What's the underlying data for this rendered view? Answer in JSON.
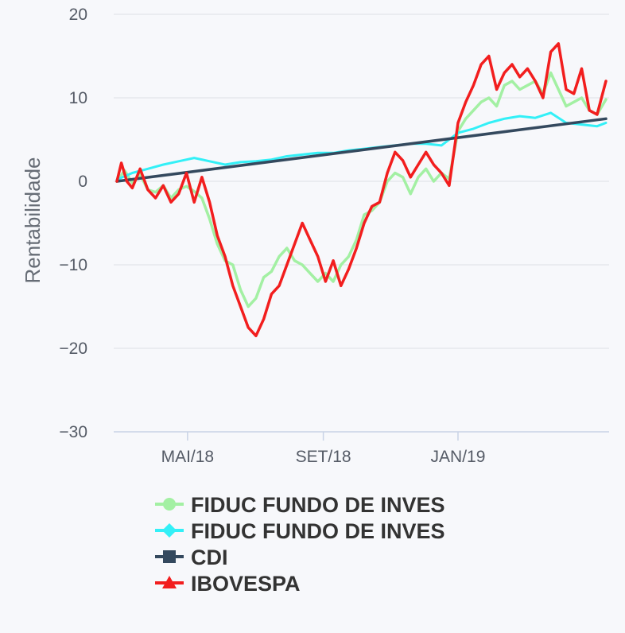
{
  "chart_data": {
    "type": "line",
    "ylabel": "Rentabilidade",
    "ylim": [
      -30,
      20
    ],
    "y_ticks": [
      "20",
      "10",
      "0",
      "−10",
      "−20",
      "−30"
    ],
    "y_tick_values": [
      20,
      10,
      0,
      -10,
      -20,
      -30
    ],
    "x_ticks": [
      "MAI/18",
      "SET/18",
      "JAN/19"
    ],
    "x_range": [
      "2018-02-26",
      "2019-05-15"
    ],
    "x_tick_dates": [
      "2018-05-01",
      "2018-09-01",
      "2019-01-01"
    ],
    "grid": true,
    "legend_position": "bottom",
    "series": [
      {
        "name": "FIDUC FUNDO DE INVES",
        "color": "#a3f0a3",
        "marker": "circle",
        "points": [
          [
            "2018-02-26",
            0.0
          ],
          [
            "2018-03-05",
            1.3
          ],
          [
            "2018-03-12",
            -0.2
          ],
          [
            "2018-03-19",
            0.8
          ],
          [
            "2018-03-26",
            -1.0
          ],
          [
            "2018-04-02",
            -1.3
          ],
          [
            "2018-04-09",
            -0.5
          ],
          [
            "2018-04-16",
            -2.0
          ],
          [
            "2018-04-23",
            -1.0
          ],
          [
            "2018-04-30",
            -0.6
          ],
          [
            "2018-05-07",
            -1.2
          ],
          [
            "2018-05-14",
            -2.0
          ],
          [
            "2018-05-21",
            -4.5
          ],
          [
            "2018-05-28",
            -7.5
          ],
          [
            "2018-06-04",
            -9.5
          ],
          [
            "2018-06-11",
            -10.0
          ],
          [
            "2018-06-18",
            -13.0
          ],
          [
            "2018-06-25",
            -15.0
          ],
          [
            "2018-07-02",
            -14.0
          ],
          [
            "2018-07-09",
            -11.5
          ],
          [
            "2018-07-16",
            -10.8
          ],
          [
            "2018-07-23",
            -9.0
          ],
          [
            "2018-07-30",
            -8.0
          ],
          [
            "2018-08-06",
            -9.5
          ],
          [
            "2018-08-13",
            -10.0
          ],
          [
            "2018-08-20",
            -11.0
          ],
          [
            "2018-08-27",
            -12.0
          ],
          [
            "2018-09-03",
            -11.0
          ],
          [
            "2018-09-10",
            -12.0
          ],
          [
            "2018-09-17",
            -10.0
          ],
          [
            "2018-09-24",
            -9.0
          ],
          [
            "2018-10-01",
            -7.0
          ],
          [
            "2018-10-08",
            -4.0
          ],
          [
            "2018-10-15",
            -3.5
          ],
          [
            "2018-10-22",
            -2.5
          ],
          [
            "2018-10-29",
            0.0
          ],
          [
            "2018-11-05",
            1.0
          ],
          [
            "2018-11-12",
            0.5
          ],
          [
            "2018-11-19",
            -1.5
          ],
          [
            "2018-11-26",
            0.5
          ],
          [
            "2018-12-03",
            1.5
          ],
          [
            "2018-12-10",
            0.0
          ],
          [
            "2018-12-17",
            1.0
          ],
          [
            "2018-12-24",
            0.3
          ],
          [
            "2019-01-01",
            6.0
          ],
          [
            "2019-01-08",
            7.5
          ],
          [
            "2019-01-15",
            8.5
          ],
          [
            "2019-01-22",
            9.5
          ],
          [
            "2019-01-29",
            10.0
          ],
          [
            "2019-02-05",
            9.0
          ],
          [
            "2019-02-12",
            11.5
          ],
          [
            "2019-02-19",
            12.0
          ],
          [
            "2019-02-26",
            11.0
          ],
          [
            "2019-03-05",
            11.5
          ],
          [
            "2019-03-12",
            12.0
          ],
          [
            "2019-03-19",
            10.5
          ],
          [
            "2019-03-26",
            13.0
          ],
          [
            "2019-04-02",
            11.0
          ],
          [
            "2019-04-09",
            9.0
          ],
          [
            "2019-04-16",
            9.5
          ],
          [
            "2019-04-23",
            10.0
          ],
          [
            "2019-04-30",
            8.5
          ],
          [
            "2019-05-07",
            8.0
          ],
          [
            "2019-05-15",
            9.8
          ]
        ]
      },
      {
        "name": "FIDUC FUNDO DE INVES",
        "color": "#33f0f7",
        "marker": "diamond",
        "points": [
          [
            "2018-02-26",
            0.2
          ],
          [
            "2018-03-12",
            1.0
          ],
          [
            "2018-03-26",
            1.5
          ],
          [
            "2018-04-09",
            2.0
          ],
          [
            "2018-04-23",
            2.4
          ],
          [
            "2018-05-07",
            2.8
          ],
          [
            "2018-05-21",
            2.4
          ],
          [
            "2018-06-04",
            2.0
          ],
          [
            "2018-06-18",
            2.3
          ],
          [
            "2018-07-02",
            2.4
          ],
          [
            "2018-07-16",
            2.6
          ],
          [
            "2018-07-30",
            3.0
          ],
          [
            "2018-08-13",
            3.2
          ],
          [
            "2018-08-27",
            3.4
          ],
          [
            "2018-09-10",
            3.4
          ],
          [
            "2018-09-24",
            3.7
          ],
          [
            "2018-10-08",
            3.9
          ],
          [
            "2018-10-22",
            4.1
          ],
          [
            "2018-11-05",
            4.3
          ],
          [
            "2018-11-19",
            4.5
          ],
          [
            "2018-12-03",
            4.5
          ],
          [
            "2018-12-17",
            4.3
          ],
          [
            "2019-01-01",
            5.8
          ],
          [
            "2019-01-15",
            6.3
          ],
          [
            "2019-01-29",
            7.0
          ],
          [
            "2019-02-12",
            7.5
          ],
          [
            "2019-02-26",
            7.8
          ],
          [
            "2019-03-12",
            7.6
          ],
          [
            "2019-03-26",
            8.2
          ],
          [
            "2019-04-09",
            7.0
          ],
          [
            "2019-04-23",
            6.8
          ],
          [
            "2019-05-07",
            6.6
          ],
          [
            "2019-05-15",
            7.0
          ]
        ]
      },
      {
        "name": "CDI",
        "color": "#34495e",
        "marker": "square",
        "points": [
          [
            "2018-02-26",
            0.0
          ],
          [
            "2019-05-15",
            7.5
          ]
        ]
      },
      {
        "name": "IBOVESPA",
        "color": "#f21e1e",
        "marker": "triangle",
        "points": [
          [
            "2018-02-26",
            0.0
          ],
          [
            "2018-03-02",
            2.2
          ],
          [
            "2018-03-07",
            0.0
          ],
          [
            "2018-03-12",
            -0.8
          ],
          [
            "2018-03-19",
            1.5
          ],
          [
            "2018-03-26",
            -1.0
          ],
          [
            "2018-04-02",
            -2.0
          ],
          [
            "2018-04-09",
            -0.5
          ],
          [
            "2018-04-16",
            -2.5
          ],
          [
            "2018-04-23",
            -1.5
          ],
          [
            "2018-04-30",
            1.0
          ],
          [
            "2018-05-07",
            -2.5
          ],
          [
            "2018-05-14",
            0.5
          ],
          [
            "2018-05-21",
            -2.5
          ],
          [
            "2018-05-28",
            -6.5
          ],
          [
            "2018-06-04",
            -9.0
          ],
          [
            "2018-06-11",
            -12.5
          ],
          [
            "2018-06-18",
            -15.0
          ],
          [
            "2018-06-25",
            -17.5
          ],
          [
            "2018-07-02",
            -18.5
          ],
          [
            "2018-07-09",
            -16.5
          ],
          [
            "2018-07-16",
            -13.5
          ],
          [
            "2018-07-23",
            -12.5
          ],
          [
            "2018-07-30",
            -10.0
          ],
          [
            "2018-08-06",
            -7.5
          ],
          [
            "2018-08-13",
            -5.0
          ],
          [
            "2018-08-20",
            -7.0
          ],
          [
            "2018-08-27",
            -9.0
          ],
          [
            "2018-09-03",
            -12.0
          ],
          [
            "2018-09-10",
            -9.5
          ],
          [
            "2018-09-17",
            -12.5
          ],
          [
            "2018-09-24",
            -10.5
          ],
          [
            "2018-10-01",
            -8.0
          ],
          [
            "2018-10-08",
            -5.0
          ],
          [
            "2018-10-15",
            -3.0
          ],
          [
            "2018-10-22",
            -2.5
          ],
          [
            "2018-10-29",
            1.0
          ],
          [
            "2018-11-05",
            3.5
          ],
          [
            "2018-11-12",
            2.5
          ],
          [
            "2018-11-19",
            0.5
          ],
          [
            "2018-11-26",
            2.0
          ],
          [
            "2018-12-03",
            3.5
          ],
          [
            "2018-12-10",
            2.0
          ],
          [
            "2018-12-17",
            1.0
          ],
          [
            "2018-12-24",
            -0.5
          ],
          [
            "2019-01-01",
            7.0
          ],
          [
            "2019-01-08",
            9.5
          ],
          [
            "2019-01-15",
            11.5
          ],
          [
            "2019-01-22",
            14.0
          ],
          [
            "2019-01-29",
            15.0
          ],
          [
            "2019-02-05",
            11.0
          ],
          [
            "2019-02-12",
            13.0
          ],
          [
            "2019-02-19",
            14.0
          ],
          [
            "2019-02-26",
            12.5
          ],
          [
            "2019-03-05",
            13.5
          ],
          [
            "2019-03-12",
            12.0
          ],
          [
            "2019-03-19",
            10.0
          ],
          [
            "2019-03-26",
            15.5
          ],
          [
            "2019-04-02",
            16.5
          ],
          [
            "2019-04-09",
            11.0
          ],
          [
            "2019-04-16",
            10.5
          ],
          [
            "2019-04-23",
            13.5
          ],
          [
            "2019-04-30",
            8.5
          ],
          [
            "2019-05-07",
            8.0
          ],
          [
            "2019-05-15",
            12.0
          ]
        ]
      }
    ]
  }
}
